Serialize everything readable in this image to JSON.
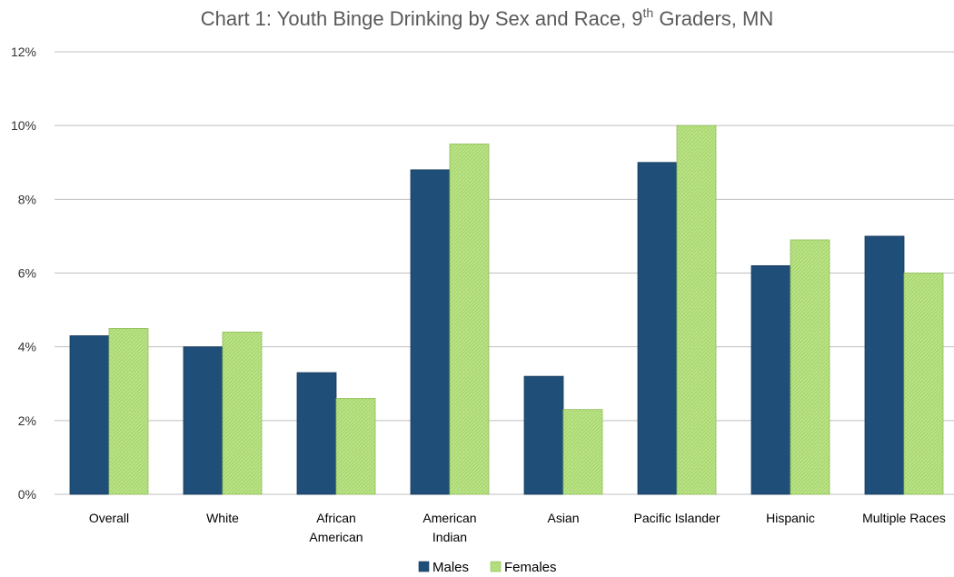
{
  "chart_data": {
    "type": "bar",
    "title_main": "Chart 1: Youth Binge Drinking by Sex and Race, 9",
    "title_sup": "th",
    "title_tail": " Graders, MN",
    "categories": [
      [
        "Overall"
      ],
      [
        "White"
      ],
      [
        "African",
        "American"
      ],
      [
        "American",
        "Indian"
      ],
      [
        "Asian"
      ],
      [
        "Pacific Islander"
      ],
      [
        "Hispanic"
      ],
      [
        "Multiple Races"
      ]
    ],
    "series": [
      {
        "name": "Males",
        "color": "#1f4e79",
        "values": [
          4.3,
          4.0,
          3.3,
          8.8,
          3.2,
          9.0,
          6.2,
          7.0
        ]
      },
      {
        "name": "Females",
        "color": "#a9d86e",
        "values": [
          4.5,
          4.4,
          2.6,
          9.5,
          2.3,
          10.0,
          6.9,
          6.0
        ]
      }
    ],
    "ylim": [
      0,
      12
    ],
    "yticks": [
      0,
      2,
      4,
      6,
      8,
      10,
      12
    ],
    "ytick_labels": [
      "0%",
      "2%",
      "4%",
      "6%",
      "8%",
      "10%",
      "12%"
    ],
    "grid": true,
    "legend_position": "bottom"
  }
}
